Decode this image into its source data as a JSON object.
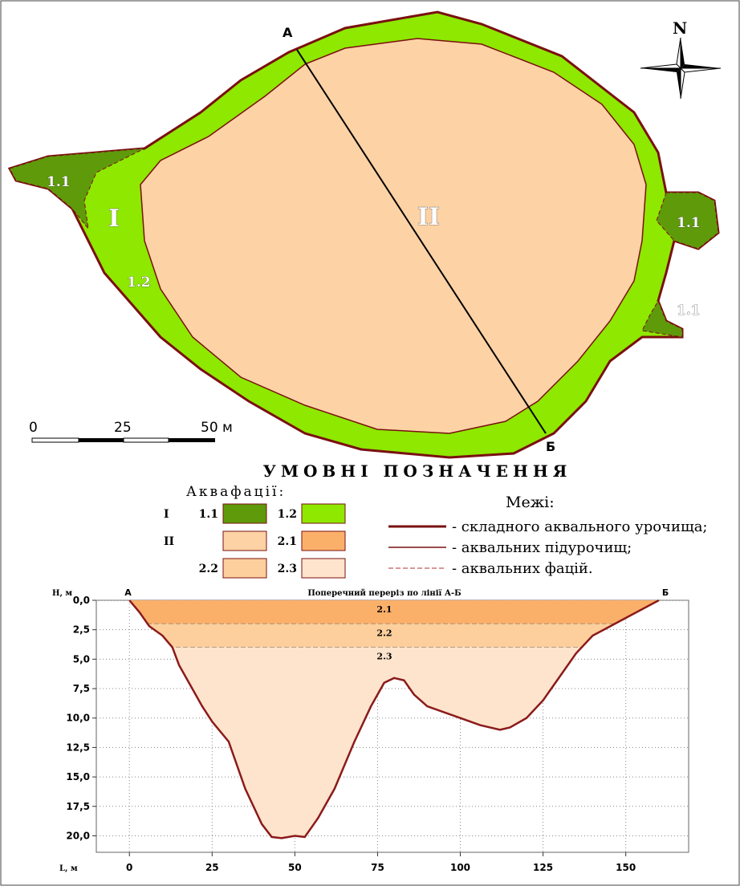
{
  "map": {
    "point_a": "А",
    "point_b": "Б",
    "north": "N",
    "region_1": "I",
    "region_2": "II",
    "facies_labels": [
      "1.1",
      "1.1",
      "1.1",
      "1.2"
    ],
    "scale_labels": [
      "0",
      "25",
      "50 м"
    ]
  },
  "legend": {
    "title": "УМОВНІ ПОЗНАЧЕННЯ",
    "facies_title": "Аквафації:",
    "facies": [
      {
        "group": "I",
        "code": "1.1",
        "color": "#5e9a0a"
      },
      {
        "code": "1.2",
        "color": "#8ee800"
      },
      {
        "group": "II",
        "color": "#fdd2a5"
      },
      {
        "code": "2.1",
        "color": "#fbb06a"
      },
      {
        "code": "2.2",
        "color": "#fdcf9c"
      },
      {
        "code": "2.3",
        "color": "#fee4cc"
      }
    ],
    "bounds_title": "Межі:",
    "bounds": [
      "- складного аквального урочища;",
      "- аквальних підурочищ;",
      "- аквальних фацій."
    ]
  },
  "chart_data": {
    "type": "area",
    "title": "Поперечний переріз по лінії А-Б",
    "y_label": "H, м",
    "x_label": "L, м",
    "start_label": "А",
    "end_label": "Б",
    "x": [
      0,
      3,
      6,
      10,
      13,
      15,
      18,
      22,
      25,
      30,
      35,
      40,
      43,
      46,
      50,
      53,
      57,
      62,
      68,
      73,
      77,
      80,
      83,
      86,
      90,
      100,
      106,
      112,
      115,
      120,
      125,
      130,
      135,
      140,
      150,
      160
    ],
    "values": [
      0,
      1,
      2.2,
      3,
      4,
      5.5,
      7,
      9,
      10.3,
      12,
      16,
      19,
      20.1,
      20.2,
      20,
      20.1,
      18.5,
      16,
      12,
      9,
      7,
      6.6,
      6.8,
      8,
      9,
      10,
      10.6,
      11,
      10.8,
      10,
      8.5,
      6.5,
      4.5,
      3,
      1.5,
      0
    ],
    "layers": [
      {
        "name": "2.1",
        "top": 0,
        "bottom": 2,
        "color": "#fbb06a"
      },
      {
        "name": "2.2",
        "top": 2,
        "bottom": 4,
        "color": "#fdcf9c"
      },
      {
        "name": "2.3",
        "top": 4,
        "bottom": 21.4,
        "color": "#fee4cc"
      }
    ],
    "line_color": "#8b1a1a",
    "xlim": [
      -10,
      169
    ],
    "ylim": [
      0,
      21.4
    ],
    "xticks": [
      0,
      25,
      50,
      75,
      100,
      125,
      150
    ],
    "yticks": [
      {
        "value": 0,
        "label": "0,0"
      },
      {
        "value": 2.5,
        "label": "2,5"
      },
      {
        "value": 5,
        "label": "5,0"
      },
      {
        "value": 7.5,
        "label": "7,5"
      },
      {
        "value": 10,
        "label": "10,0"
      },
      {
        "value": 12.5,
        "label": "12,5"
      },
      {
        "value": 15,
        "label": "15,0"
      },
      {
        "value": 17.5,
        "label": "17,5"
      },
      {
        "value": 20,
        "label": "20,0"
      }
    ],
    "grid": true
  }
}
